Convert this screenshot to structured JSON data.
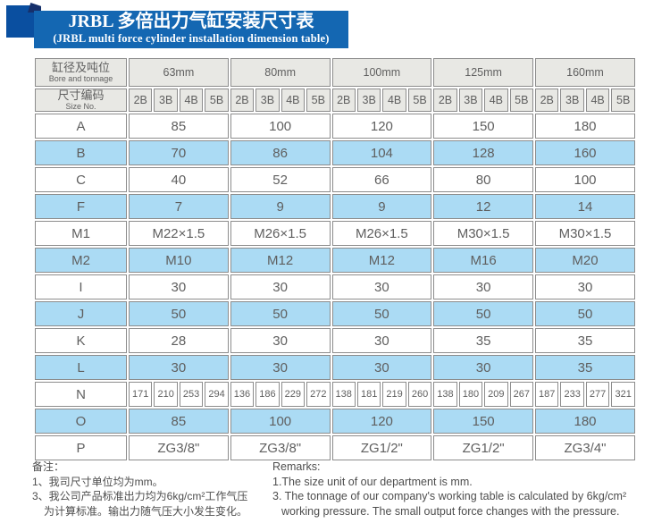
{
  "title": {
    "zh": "JRBL 多倍出力气缸安装尺寸表",
    "en": "(JRBL multi force cylinder installation dimension table)"
  },
  "table": {
    "corner": {
      "bore_zh": "缸径及吨位",
      "bore_en": "Bore and tonnage",
      "size_zh": "尺寸编码",
      "size_en": "Size No."
    },
    "groups": [
      "63mm",
      "80mm",
      "100mm",
      "125mm",
      "160mm"
    ],
    "sub_columns": [
      "2B",
      "3B",
      "4B",
      "5B"
    ],
    "rows": [
      {
        "label": "A",
        "shaded": false,
        "merged": true,
        "values": [
          "85",
          "100",
          "120",
          "150",
          "180"
        ]
      },
      {
        "label": "B",
        "shaded": true,
        "merged": true,
        "values": [
          "70",
          "86",
          "104",
          "128",
          "160"
        ]
      },
      {
        "label": "C",
        "shaded": false,
        "merged": true,
        "values": [
          "40",
          "52",
          "66",
          "80",
          "100"
        ]
      },
      {
        "label": "F",
        "shaded": true,
        "merged": true,
        "values": [
          "7",
          "9",
          "9",
          "12",
          "14"
        ]
      },
      {
        "label": "M1",
        "shaded": false,
        "merged": true,
        "values": [
          "M22×1.5",
          "M26×1.5",
          "M26×1.5",
          "M30×1.5",
          "M30×1.5"
        ]
      },
      {
        "label": "M2",
        "shaded": true,
        "merged": true,
        "values": [
          "M10",
          "M12",
          "M12",
          "M16",
          "M20"
        ]
      },
      {
        "label": "I",
        "shaded": false,
        "merged": true,
        "values": [
          "30",
          "30",
          "30",
          "30",
          "30"
        ]
      },
      {
        "label": "J",
        "shaded": true,
        "merged": true,
        "values": [
          "50",
          "50",
          "50",
          "50",
          "50"
        ]
      },
      {
        "label": "K",
        "shaded": false,
        "merged": true,
        "values": [
          "28",
          "30",
          "30",
          "35",
          "35"
        ]
      },
      {
        "label": "L",
        "shaded": true,
        "merged": true,
        "values": [
          "30",
          "30",
          "30",
          "30",
          "35"
        ]
      },
      {
        "label": "N",
        "shaded": false,
        "merged": false,
        "values": [
          [
            "171",
            "210",
            "253",
            "294"
          ],
          [
            "136",
            "186",
            "229",
            "272"
          ],
          [
            "138",
            "181",
            "219",
            "260"
          ],
          [
            "138",
            "180",
            "209",
            "267"
          ],
          [
            "187",
            "233",
            "277",
            "321"
          ]
        ]
      },
      {
        "label": "O",
        "shaded": true,
        "merged": true,
        "values": [
          "85",
          "100",
          "120",
          "150",
          "180"
        ]
      },
      {
        "label": "P",
        "shaded": false,
        "merged": true,
        "values": [
          "ZG3/8\"",
          "ZG3/8\"",
          "ZG1/2\"",
          "ZG1/2\"",
          "ZG3/4\""
        ]
      }
    ]
  },
  "notes": {
    "zh": {
      "heading": "备注：",
      "lines": [
        {
          "text": "1、我司尺寸单位均为mm。",
          "indent": false
        },
        {
          "text": "3、我公司产品标准出力均为6kg/cm²工作气压",
          "indent": false
        },
        {
          "text": "为计算标准。输出力随气压大小发生变化。",
          "indent": true
        }
      ]
    },
    "en": {
      "heading": "Remarks:",
      "lines": [
        {
          "text": "1.The size unit of our department is mm.",
          "indent": false
        },
        {
          "text": "3. The tonnage of our company's working table is calculated by 6kg/cm²",
          "indent": false
        },
        {
          "text": "working pressure. The small output force changes with the pressure.",
          "indent": true
        }
      ]
    }
  },
  "colors": {
    "banner_blue": "#1467b2",
    "ribbon_blue": "#0a4fa0",
    "fold_navy": "#16306b",
    "header_gray": "#e8e8e4",
    "row_blue": "#abdbf4",
    "cell_border": "#8c8c8c",
    "text_gray": "#5f5f5f"
  }
}
